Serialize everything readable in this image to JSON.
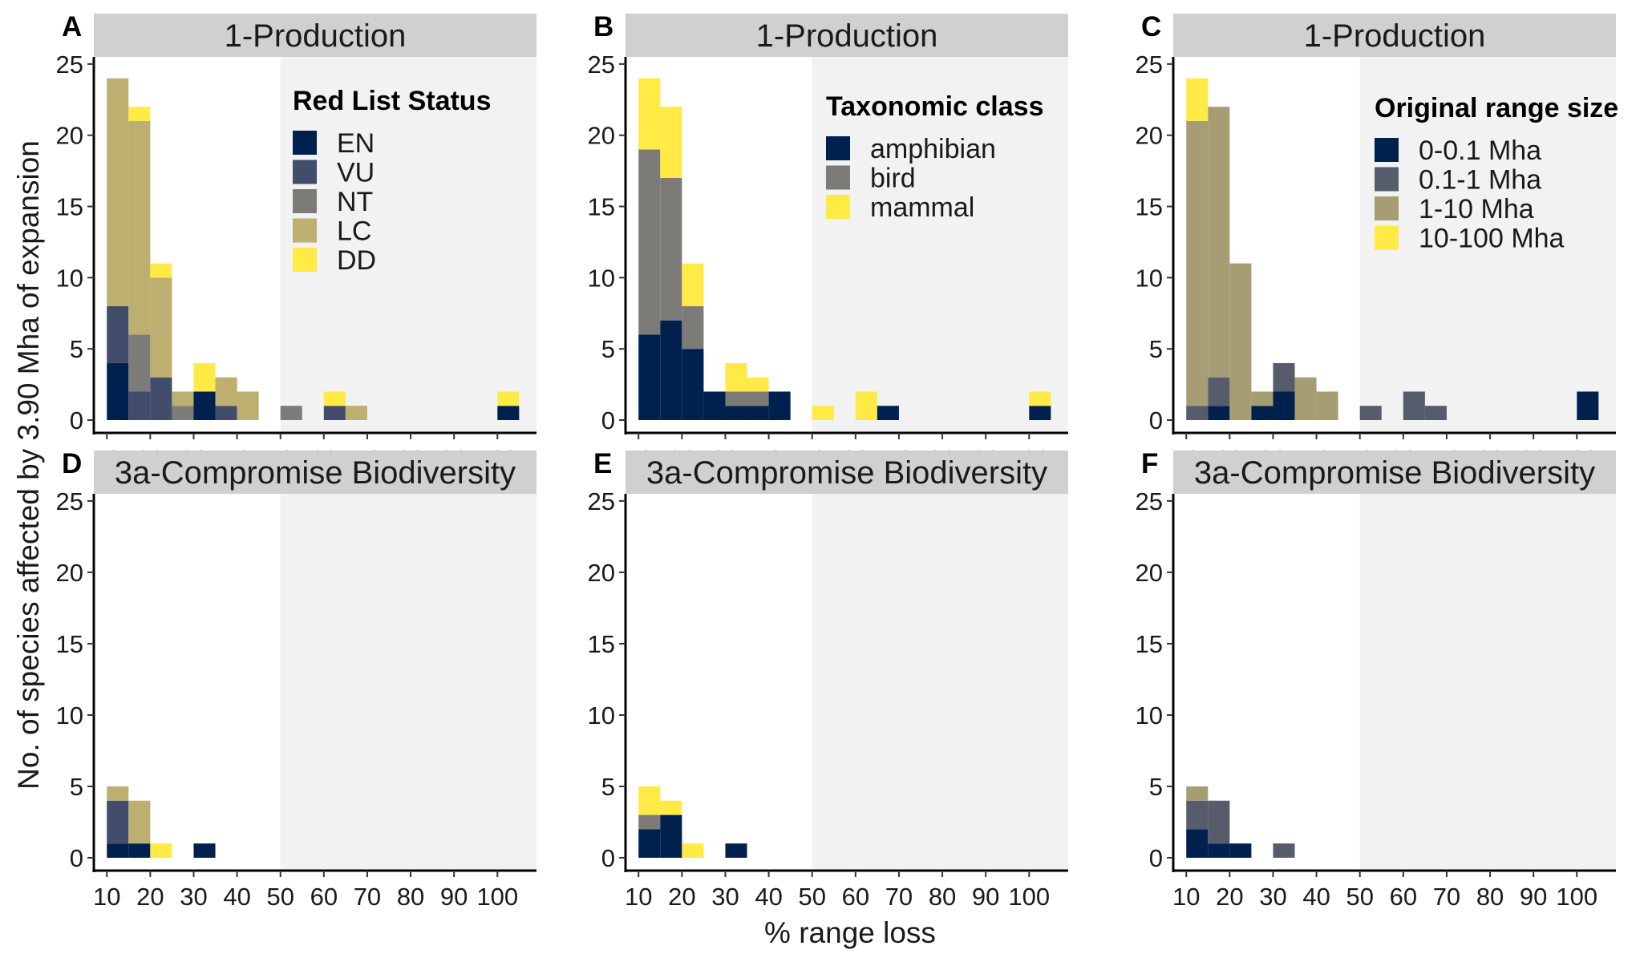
{
  "y_axis_title": "No. of species affected by 3.90 Mha of expansion",
  "x_axis_title": "% range loss",
  "x_ticks": [
    10,
    20,
    30,
    40,
    50,
    60,
    70,
    80,
    90,
    100
  ],
  "y_ticks": [
    0,
    5,
    10,
    15,
    20,
    25
  ],
  "palettes": {
    "red_list": [
      "#00204d",
      "#414d6b",
      "#7c7b78",
      "#bcaf6f",
      "#ffea46"
    ],
    "taxonomic": [
      "#00204d",
      "#7c7b78",
      "#ffea46"
    ],
    "range_size": [
      "#00204d",
      "#575c6d",
      "#a69d75",
      "#ffea46"
    ]
  },
  "colors": {
    "strip": "#d0d0d0",
    "shade": "#f2f2f2"
  },
  "chart_data": [
    {
      "type": "bar",
      "letter": "A",
      "strip": "1-Production",
      "legend": {
        "title": "Red List Status",
        "entries": [
          "EN",
          "VU",
          "NT",
          "LC",
          "DD"
        ]
      },
      "palette": "red_list",
      "xlim": [
        7,
        109
      ],
      "ylim": [
        -0.9,
        25.5
      ],
      "shade_from": 50,
      "bins": [
        {
          "x": 12.5,
          "stack": [
            4,
            4,
            0,
            16,
            0
          ]
        },
        {
          "x": 17.5,
          "stack": [
            0,
            2,
            4,
            15,
            1
          ]
        },
        {
          "x": 22.5,
          "stack": [
            0,
            3,
            0,
            7,
            1
          ]
        },
        {
          "x": 27.5,
          "stack": [
            0,
            0,
            1,
            1,
            0
          ]
        },
        {
          "x": 32.5,
          "stack": [
            2,
            0,
            0,
            0,
            2
          ]
        },
        {
          "x": 37.5,
          "stack": [
            0,
            1,
            0,
            2,
            0
          ]
        },
        {
          "x": 42.5,
          "stack": [
            0,
            0,
            0,
            2,
            0
          ]
        },
        {
          "x": 52.5,
          "stack": [
            0,
            0,
            1,
            0,
            0
          ]
        },
        {
          "x": 62.5,
          "stack": [
            0,
            1,
            0,
            0,
            1
          ]
        },
        {
          "x": 67.5,
          "stack": [
            0,
            0,
            0,
            1,
            0
          ]
        },
        {
          "x": 102.5,
          "stack": [
            1,
            0,
            0,
            0,
            1
          ]
        }
      ]
    },
    {
      "type": "bar",
      "letter": "B",
      "strip": "1-Production",
      "legend": {
        "title": "Taxonomic class",
        "entries": [
          "amphibian",
          "bird",
          "mammal"
        ]
      },
      "palette": "taxonomic",
      "xlim": [
        7,
        109
      ],
      "ylim": [
        -0.9,
        25.5
      ],
      "shade_from": 50,
      "bins": [
        {
          "x": 12.5,
          "stack": [
            6,
            13,
            5
          ]
        },
        {
          "x": 17.5,
          "stack": [
            7,
            10,
            5
          ]
        },
        {
          "x": 22.5,
          "stack": [
            5,
            3,
            3
          ]
        },
        {
          "x": 27.5,
          "stack": [
            2,
            0,
            0
          ]
        },
        {
          "x": 32.5,
          "stack": [
            1,
            1,
            2
          ]
        },
        {
          "x": 37.5,
          "stack": [
            1,
            1,
            1
          ]
        },
        {
          "x": 42.5,
          "stack": [
            2,
            0,
            0
          ]
        },
        {
          "x": 52.5,
          "stack": [
            0,
            0,
            1
          ]
        },
        {
          "x": 62.5,
          "stack": [
            0,
            0,
            2
          ]
        },
        {
          "x": 67.5,
          "stack": [
            1,
            0,
            0
          ]
        },
        {
          "x": 102.5,
          "stack": [
            1,
            0,
            1
          ]
        }
      ]
    },
    {
      "type": "bar",
      "letter": "C",
      "strip": "1-Production",
      "legend": {
        "title": "Original range size",
        "entries": [
          "0-0.1 Mha",
          "0.1-1 Mha",
          "1-10 Mha",
          "10-100 Mha"
        ]
      },
      "palette": "range_size",
      "xlim": [
        7,
        109
      ],
      "ylim": [
        -0.9,
        25.5
      ],
      "shade_from": 50,
      "bins": [
        {
          "x": 12.5,
          "stack": [
            0,
            1,
            20,
            3
          ]
        },
        {
          "x": 17.5,
          "stack": [
            1,
            2,
            19,
            0
          ]
        },
        {
          "x": 22.5,
          "stack": [
            0,
            0,
            11,
            0
          ]
        },
        {
          "x": 27.5,
          "stack": [
            1,
            0,
            1,
            0
          ]
        },
        {
          "x": 32.5,
          "stack": [
            2,
            2,
            0,
            0
          ]
        },
        {
          "x": 37.5,
          "stack": [
            0,
            0,
            3,
            0
          ]
        },
        {
          "x": 42.5,
          "stack": [
            0,
            0,
            2,
            0
          ]
        },
        {
          "x": 52.5,
          "stack": [
            0,
            1,
            0,
            0
          ]
        },
        {
          "x": 62.5,
          "stack": [
            0,
            2,
            0,
            0
          ]
        },
        {
          "x": 67.5,
          "stack": [
            0,
            1,
            0,
            0
          ]
        },
        {
          "x": 102.5,
          "stack": [
            2,
            0,
            0,
            0
          ]
        }
      ]
    },
    {
      "type": "bar",
      "letter": "D",
      "strip": "3a-Compromise Biodiversity",
      "palette": "red_list",
      "xlim": [
        7,
        109
      ],
      "ylim": [
        -0.9,
        25.5
      ],
      "shade_from": 50,
      "bins": [
        {
          "x": 12.5,
          "stack": [
            1,
            3,
            0,
            1,
            0
          ]
        },
        {
          "x": 17.5,
          "stack": [
            1,
            0,
            0,
            3,
            0
          ]
        },
        {
          "x": 22.5,
          "stack": [
            0,
            0,
            0,
            0,
            1
          ]
        },
        {
          "x": 32.5,
          "stack": [
            1,
            0,
            0,
            0,
            0
          ]
        }
      ]
    },
    {
      "type": "bar",
      "letter": "E",
      "strip": "3a-Compromise Biodiversity",
      "palette": "taxonomic",
      "xlim": [
        7,
        109
      ],
      "ylim": [
        -0.9,
        25.5
      ],
      "shade_from": 50,
      "bins": [
        {
          "x": 12.5,
          "stack": [
            2,
            1,
            2
          ]
        },
        {
          "x": 17.5,
          "stack": [
            3,
            0,
            1
          ]
        },
        {
          "x": 22.5,
          "stack": [
            0,
            0,
            1
          ]
        },
        {
          "x": 32.5,
          "stack": [
            1,
            0,
            0
          ]
        }
      ]
    },
    {
      "type": "bar",
      "letter": "F",
      "strip": "3a-Compromise Biodiversity",
      "palette": "range_size",
      "xlim": [
        7,
        109
      ],
      "ylim": [
        -0.9,
        25.5
      ],
      "shade_from": 50,
      "bins": [
        {
          "x": 12.5,
          "stack": [
            2,
            2,
            1,
            0
          ]
        },
        {
          "x": 17.5,
          "stack": [
            1,
            3,
            0,
            0
          ]
        },
        {
          "x": 22.5,
          "stack": [
            1,
            0,
            0,
            0
          ]
        },
        {
          "x": 32.5,
          "stack": [
            0,
            1,
            0,
            0
          ]
        }
      ]
    }
  ]
}
